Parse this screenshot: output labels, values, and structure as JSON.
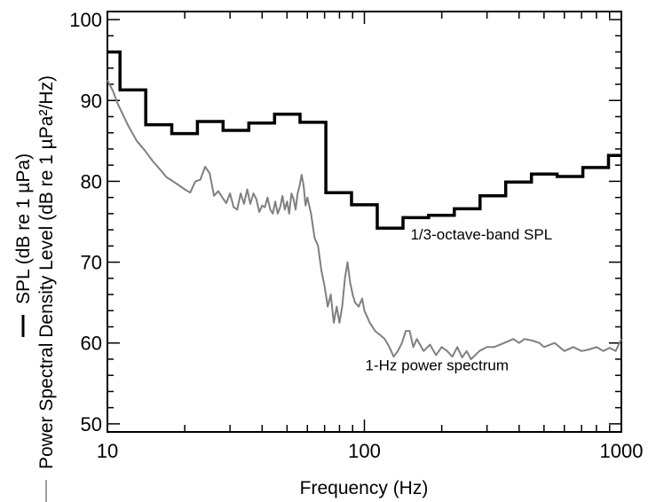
{
  "chart_data": {
    "type": "line",
    "title": "",
    "xlabel": "Frequency (Hz)",
    "ylabel_lines": [
      "SPL (dB re 1 µPa)",
      "Power Spectral Density Level (dB re 1 µPa²/Hz)"
    ],
    "x_scale": "log",
    "xlim": [
      10,
      1000
    ],
    "ylim": [
      49,
      101
    ],
    "x_ticks": [
      {
        "value": 10,
        "label": "10"
      },
      {
        "value": 100,
        "label": "100"
      },
      {
        "value": 1000,
        "label": "1000"
      }
    ],
    "y_ticks": [
      {
        "value": 50,
        "label": "50"
      },
      {
        "value": 60,
        "label": "60"
      },
      {
        "value": 70,
        "label": "70"
      },
      {
        "value": 80,
        "label": "80"
      },
      {
        "value": 90,
        "label": "90"
      },
      {
        "value": 100,
        "label": "100"
      }
    ],
    "grid": false,
    "series": [
      {
        "name": "1/3-octave-band SPL",
        "style": "step",
        "color": "#000000",
        "bands": [
          {
            "lo": 10,
            "hi": 11.2,
            "y": 96.0
          },
          {
            "lo": 11.2,
            "hi": 14.1,
            "y": 91.3
          },
          {
            "lo": 14.1,
            "hi": 17.8,
            "y": 87.0
          },
          {
            "lo": 17.8,
            "hi": 22.4,
            "y": 85.9
          },
          {
            "lo": 22.4,
            "hi": 28.2,
            "y": 87.4
          },
          {
            "lo": 28.2,
            "hi": 35.5,
            "y": 86.3
          },
          {
            "lo": 35.5,
            "hi": 44.7,
            "y": 87.2
          },
          {
            "lo": 44.7,
            "hi": 56.2,
            "y": 88.3
          },
          {
            "lo": 56.2,
            "hi": 70.8,
            "y": 87.3
          },
          {
            "lo": 70.8,
            "hi": 89.1,
            "y": 78.6
          },
          {
            "lo": 89.1,
            "hi": 112.2,
            "y": 77.1
          },
          {
            "lo": 112.2,
            "hi": 141.3,
            "y": 74.2
          },
          {
            "lo": 141.3,
            "hi": 177.8,
            "y": 75.5
          },
          {
            "lo": 177.8,
            "hi": 223.9,
            "y": 75.8
          },
          {
            "lo": 223.9,
            "hi": 281.8,
            "y": 76.6
          },
          {
            "lo": 281.8,
            "hi": 354.8,
            "y": 78.2
          },
          {
            "lo": 354.8,
            "hi": 446.7,
            "y": 79.9
          },
          {
            "lo": 446.7,
            "hi": 562.3,
            "y": 80.9
          },
          {
            "lo": 562.3,
            "hi": 707.9,
            "y": 80.6
          },
          {
            "lo": 707.9,
            "hi": 891.3,
            "y": 81.7
          },
          {
            "lo": 891.3,
            "hi": 1000,
            "y": 83.2
          }
        ]
      },
      {
        "name": "1-Hz power spectrum",
        "style": "line",
        "color": "#808080",
        "x": [
          10,
          10.5,
          11,
          12,
          13,
          14,
          15,
          16,
          17,
          18,
          19,
          20,
          21,
          22,
          23,
          24,
          25,
          26,
          27,
          28,
          29,
          30,
          31,
          32,
          33,
          34,
          35,
          36,
          37,
          38,
          39,
          40,
          41,
          42,
          43,
          44,
          45,
          46,
          47,
          48,
          49,
          50,
          51,
          52,
          53,
          54,
          55,
          56,
          57,
          58,
          59,
          60,
          62,
          64,
          66,
          68,
          70,
          72,
          74,
          76,
          78,
          80,
          82,
          84,
          86,
          88,
          90,
          92,
          95,
          98,
          100,
          105,
          110,
          115,
          120,
          125,
          130,
          135,
          140,
          145,
          150,
          155,
          160,
          170,
          180,
          190,
          200,
          210,
          220,
          230,
          240,
          250,
          260,
          280,
          300,
          320,
          350,
          380,
          400,
          420,
          450,
          480,
          500,
          550,
          600,
          650,
          700,
          750,
          800,
          850,
          900,
          950,
          1000
        ],
        "values": [
          92.5,
          91.2,
          89.5,
          87.0,
          85.0,
          83.8,
          82.5,
          81.5,
          80.5,
          80.0,
          79.5,
          79.0,
          78.6,
          80.0,
          80.2,
          81.8,
          81.0,
          78.2,
          78.8,
          78.0,
          77.3,
          78.5,
          76.8,
          76.5,
          78.5,
          77.2,
          79.0,
          77.2,
          78.5,
          77.8,
          76.2,
          77.0,
          76.8,
          78.0,
          76.5,
          76.0,
          77.5,
          76.0,
          76.8,
          78.2,
          76.5,
          77.5,
          76.0,
          78.5,
          77.8,
          76.5,
          78.5,
          79.5,
          80.8,
          79.5,
          77.0,
          78.0,
          76.0,
          73.0,
          72.0,
          69.0,
          67.0,
          64.5,
          66.0,
          62.5,
          64.5,
          62.5,
          64.5,
          68.0,
          70.0,
          67.5,
          66.0,
          65.0,
          64.5,
          65.5,
          64.0,
          62.5,
          61.5,
          61.0,
          60.5,
          59.5,
          58.3,
          59.0,
          60.0,
          61.5,
          61.5,
          59.5,
          60.5,
          59.0,
          59.8,
          58.5,
          59.5,
          59.0,
          58.3,
          59.5,
          58.2,
          59.0,
          58.0,
          59.0,
          59.5,
          59.5,
          60.0,
          60.5,
          60.0,
          60.5,
          60.3,
          60.0,
          59.5,
          60.0,
          59.0,
          59.5,
          59.0,
          59.2,
          59.5,
          59.0,
          59.4,
          59.0,
          60.5
        ]
      }
    ],
    "annotations": [
      {
        "text": "1/3-octave-band SPL",
        "x": 150,
        "y": 72.8
      },
      {
        "text": "1-Hz power spectrum",
        "x": 100,
        "y": 56.6
      }
    ]
  }
}
